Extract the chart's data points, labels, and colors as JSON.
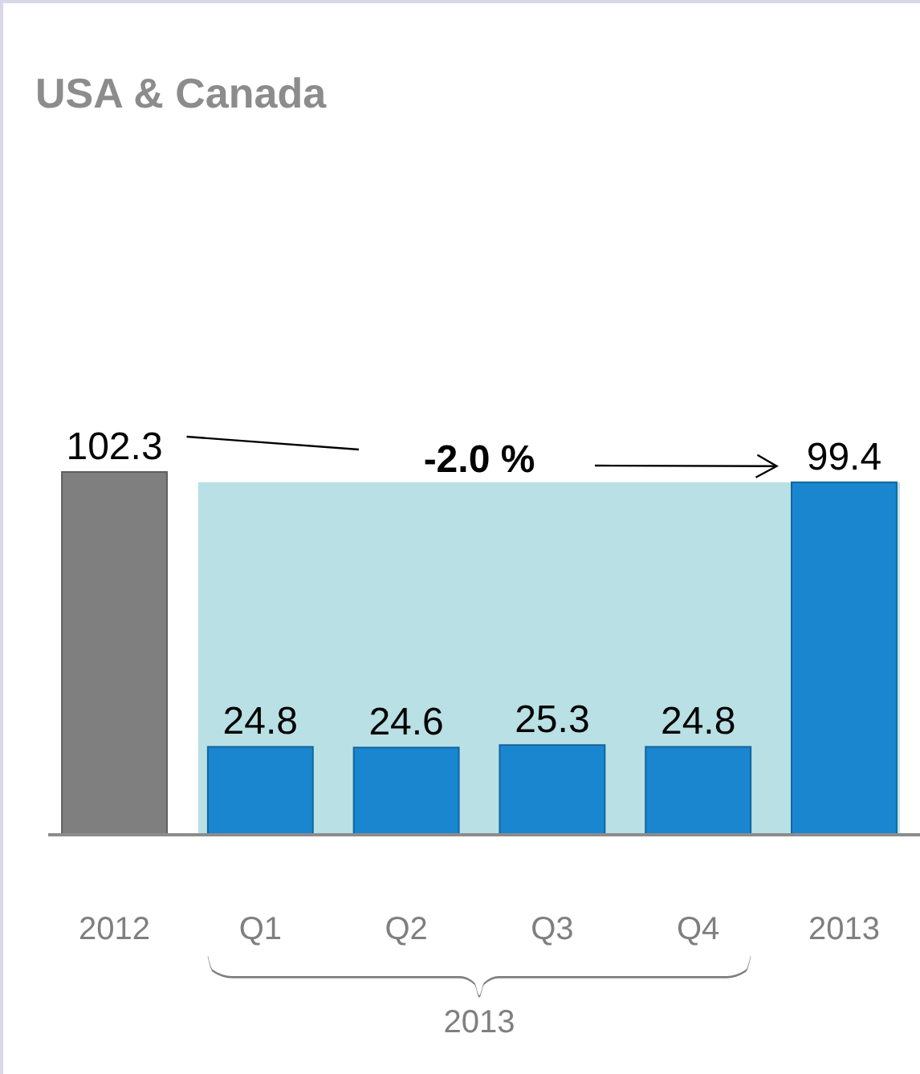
{
  "chart_data": {
    "type": "bar",
    "title": "USA & Canada",
    "categories": [
      "2012",
      "Q1",
      "Q2",
      "Q3",
      "Q4",
      "2013"
    ],
    "values": [
      102.3,
      24.8,
      24.6,
      25.3,
      24.8,
      99.4
    ],
    "colors": [
      "#7f7f7f",
      "#1a86d0",
      "#1a86d0",
      "#1a86d0",
      "#1a86d0",
      "#1a86d0"
    ],
    "data_labels": true,
    "bands": [
      {
        "axis": "x",
        "from": "Q1",
        "to": "2013",
        "color": "#b9e0e4"
      }
    ],
    "annotations": [
      "-2.0 %",
      "2013"
    ]
  }
}
